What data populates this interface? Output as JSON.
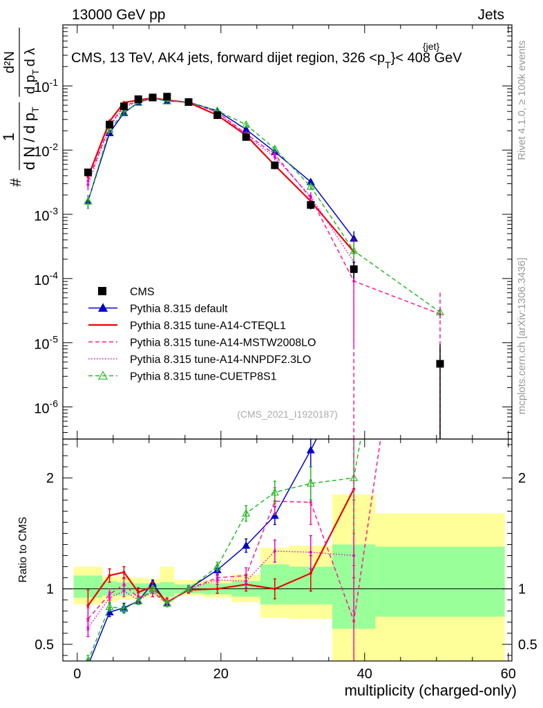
{
  "header": {
    "left": "13000 GeV pp",
    "right": "Jets"
  },
  "chart_data": {
    "type": "line",
    "title": "CMS, 13 TeV, AK4 jets, forward dijet region, 326 <p",
    "title_sup": "{jet}",
    "title_sub": "T",
    "title_end": "}< 408 GeV",
    "xlabel": "multiplicity (charged-only)",
    "ylabel_parts": {
      "numerator_one": "1",
      "denominator": "d N / d p",
      "denominator_sub": "T",
      "hash": "#",
      "frac2_num": "d²N",
      "frac2_den": "d p",
      "frac2_den_sub": "T",
      "frac2_end": "d λ",
      "hash2": "#"
    },
    "ratio_ylabel": "Ratio to CMS",
    "side_labels": {
      "rivet": "Rivet 4.1.0, ≥ 100k events",
      "mcplots": "mcplots.cern.ch [arXiv:1306.3436]"
    },
    "analysis_id": "(CMS_2021_I1920187)",
    "xlim": [
      -2,
      60.5
    ],
    "ylim_main_log10": [
      -6.5,
      -0.05
    ],
    "ylim_ratio": [
      0.35,
      2.35
    ],
    "x_ticks": [
      0,
      20,
      40,
      60
    ],
    "main_y_ticks": [
      {
        "exp": -6,
        "label": "10",
        "sup": "-6"
      },
      {
        "exp": -5,
        "label": "10",
        "sup": "-5"
      },
      {
        "exp": -4,
        "label": "10",
        "sup": "-4"
      },
      {
        "exp": -3,
        "label": "10",
        "sup": "-3"
      },
      {
        "exp": -2,
        "label": "10",
        "sup": "-2"
      },
      {
        "exp": -1,
        "label": "10",
        "sup": "-1"
      }
    ],
    "ratio_y_ticks": [
      {
        "value": 0.5,
        "label": "0.5"
      },
      {
        "value": 1,
        "label": "1"
      },
      {
        "value": 2,
        "label": "2"
      }
    ],
    "bins": [
      {
        "lo": -0.5,
        "hi": 3.5
      },
      {
        "lo": 3.5,
        "hi": 5.5
      },
      {
        "lo": 5.5,
        "hi": 7.5
      },
      {
        "lo": 7.5,
        "hi": 9.5
      },
      {
        "lo": 9.5,
        "hi": 11.5
      },
      {
        "lo": 11.5,
        "hi": 13.5
      },
      {
        "lo": 13.5,
        "hi": 17.5
      },
      {
        "lo": 17.5,
        "hi": 21.5
      },
      {
        "lo": 21.5,
        "hi": 25.5
      },
      {
        "lo": 25.5,
        "hi": 29.5
      },
      {
        "lo": 29.5,
        "hi": 35.5
      },
      {
        "lo": 35.5,
        "hi": 41.5
      },
      {
        "lo": 41.5,
        "hi": 59.5
      }
    ],
    "band_inner": [
      [
        0.92,
        1.12
      ],
      [
        0.94,
        1.07
      ],
      [
        0.94,
        1.06
      ],
      [
        0.95,
        1.05
      ],
      [
        0.95,
        1.05
      ],
      [
        0.93,
        1.06
      ],
      [
        0.96,
        1.04
      ],
      [
        0.95,
        1.05
      ],
      [
        0.93,
        1.07
      ],
      [
        0.86,
        1.22
      ],
      [
        0.86,
        1.2
      ],
      [
        0.64,
        1.4
      ],
      [
        0.75,
        1.38
      ]
    ],
    "band_outer": [
      [
        0.86,
        1.2
      ],
      [
        0.88,
        1.11
      ],
      [
        0.9,
        1.11
      ],
      [
        0.91,
        1.1
      ],
      [
        0.92,
        1.09
      ],
      [
        0.88,
        1.2
      ],
      [
        0.94,
        1.08
      ],
      [
        0.92,
        1.08
      ],
      [
        0.88,
        1.13
      ],
      [
        0.74,
        1.37
      ],
      [
        0.73,
        1.39
      ],
      [
        0.35,
        1.85
      ],
      [
        0.35,
        1.68
      ]
    ],
    "cms": {
      "name": "CMS",
      "x": [
        1.5,
        4.5,
        6.5,
        8.5,
        10.5,
        12.5,
        15.5,
        19.5,
        23.5,
        27.5,
        32.5,
        38.5,
        50.5
      ],
      "y": [
        0.0045,
        0.025,
        0.048,
        0.062,
        0.066,
        0.068,
        0.056,
        0.035,
        0.016,
        0.0058,
        0.0014,
        0.00014,
        4.7e-06
      ],
      "yerr_rel": [
        0.1,
        0.1,
        0.07,
        0.06,
        0.06,
        0.06,
        0.05,
        0.06,
        0.08,
        0.12,
        0.15,
        0.3,
        1.0
      ]
    },
    "series": [
      {
        "name": "Pythia 8.315 default",
        "color": "#0000cc",
        "dash": "solid",
        "marker": "triangle-filled",
        "x": [
          1.5,
          4.5,
          6.5,
          8.5,
          10.5,
          12.5,
          15.5,
          19.5,
          23.5,
          27.5,
          32.5,
          38.5,
          50.5
        ],
        "y": [
          0.0016,
          0.0185,
          0.038,
          0.055,
          0.065,
          0.058,
          0.056,
          0.041,
          0.021,
          0.0094,
          0.0032,
          0.00042,
          null
        ],
        "ratio": [
          0.31,
          0.79,
          0.83,
          0.89,
          1.05,
          0.87,
          1.0,
          1.17,
          1.39,
          1.66,
          2.25,
          3.0,
          null
        ],
        "ratio_err": [
          0.05,
          0.04,
          0.04,
          0.03,
          0.03,
          0.03,
          0.02,
          0.04,
          0.06,
          0.08,
          0.15,
          0.6,
          null
        ]
      },
      {
        "name": "Pythia 8.315 tune-A14-CTEQL1",
        "color": "#ee0000",
        "dash": "solid",
        "marker": "none",
        "x": [
          1.5,
          4.5,
          6.5,
          8.5,
          10.5,
          12.5,
          15.5,
          19.5,
          23.5,
          27.5,
          32.5,
          38.5
        ],
        "y": [
          0.0038,
          0.028,
          0.055,
          0.06,
          0.065,
          0.06,
          0.055,
          0.035,
          0.017,
          0.0058,
          0.0016,
          0.00026
        ],
        "ratio": [
          0.85,
          1.12,
          1.15,
          0.97,
          1.02,
          0.88,
          0.99,
          1.0,
          1.04,
          1.0,
          1.14,
          1.9
        ],
        "ratio_err": [
          0.14,
          0.06,
          0.05,
          0.04,
          0.04,
          0.04,
          0.03,
          0.04,
          0.06,
          0.09,
          0.16,
          0.8
        ]
      },
      {
        "name": "Pythia 8.315 tune-A14-MSTW2008LO",
        "color": "#ff1493",
        "dash": "6,4",
        "marker": "none",
        "x": [
          1.5,
          4.5,
          6.5,
          8.5,
          10.5,
          12.5,
          15.5,
          19.5,
          23.5,
          27.5,
          32.5,
          38.5,
          50.5
        ],
        "y": [
          0.0033,
          0.024,
          0.05,
          0.057,
          0.064,
          0.059,
          0.056,
          0.039,
          0.018,
          0.0085,
          0.0018,
          9.1e-05,
          2.8e-05
        ],
        "ratio": [
          0.73,
          0.95,
          1.04,
          0.92,
          0.97,
          0.87,
          1.0,
          1.1,
          1.12,
          1.79,
          1.78,
          0.71,
          6.0
        ],
        "ratio_err": [
          0.1,
          0.05,
          0.05,
          0.04,
          0.04,
          0.03,
          0.03,
          0.04,
          0.07,
          0.12,
          0.2,
          0.5,
          null
        ]
      },
      {
        "name": "Pythia 8.315 tune-A14-NNPDF2.3LO",
        "color": "#e000e0",
        "dash": "1.5,2.5",
        "marker": "none",
        "x": [
          1.5,
          4.5,
          6.5,
          8.5,
          10.5,
          12.5,
          15.5,
          19.5,
          23.5,
          27.5,
          32.5,
          38.5
        ],
        "y": [
          0.0029,
          0.023,
          0.047,
          0.056,
          0.064,
          0.06,
          0.056,
          0.039,
          0.017,
          0.0078,
          0.0019,
          0.00018
        ],
        "ratio": [
          0.65,
          0.92,
          0.98,
          0.9,
          0.97,
          0.88,
          1.0,
          1.08,
          1.07,
          1.34,
          1.33,
          1.3
        ],
        "ratio_err": [
          0.08,
          0.05,
          0.05,
          0.04,
          0.04,
          0.03,
          0.03,
          0.04,
          0.06,
          0.1,
          0.15,
          0.5
        ]
      },
      {
        "name": "Pythia 8.315 tune-CUETP8S1",
        "color": "#22bb22",
        "dash": "6,4",
        "marker": "triangle-open",
        "x": [
          1.5,
          4.5,
          6.5,
          8.5,
          10.5,
          12.5,
          15.5,
          19.5,
          23.5,
          27.5,
          32.5,
          38.5,
          50.5
        ],
        "y": [
          0.0016,
          0.021,
          0.039,
          0.055,
          0.066,
          0.058,
          0.056,
          0.041,
          0.025,
          0.0105,
          0.0027,
          0.00027,
          3e-05
        ],
        "ratio": [
          0.35,
          0.84,
          0.82,
          0.89,
          1.0,
          0.87,
          1.0,
          1.2,
          1.68,
          1.87,
          1.95,
          2.0,
          6.4
        ],
        "ratio_err": [
          0.05,
          0.04,
          0.04,
          0.03,
          0.03,
          0.03,
          0.02,
          0.04,
          0.07,
          0.1,
          0.15,
          0.5,
          null
        ]
      }
    ]
  }
}
